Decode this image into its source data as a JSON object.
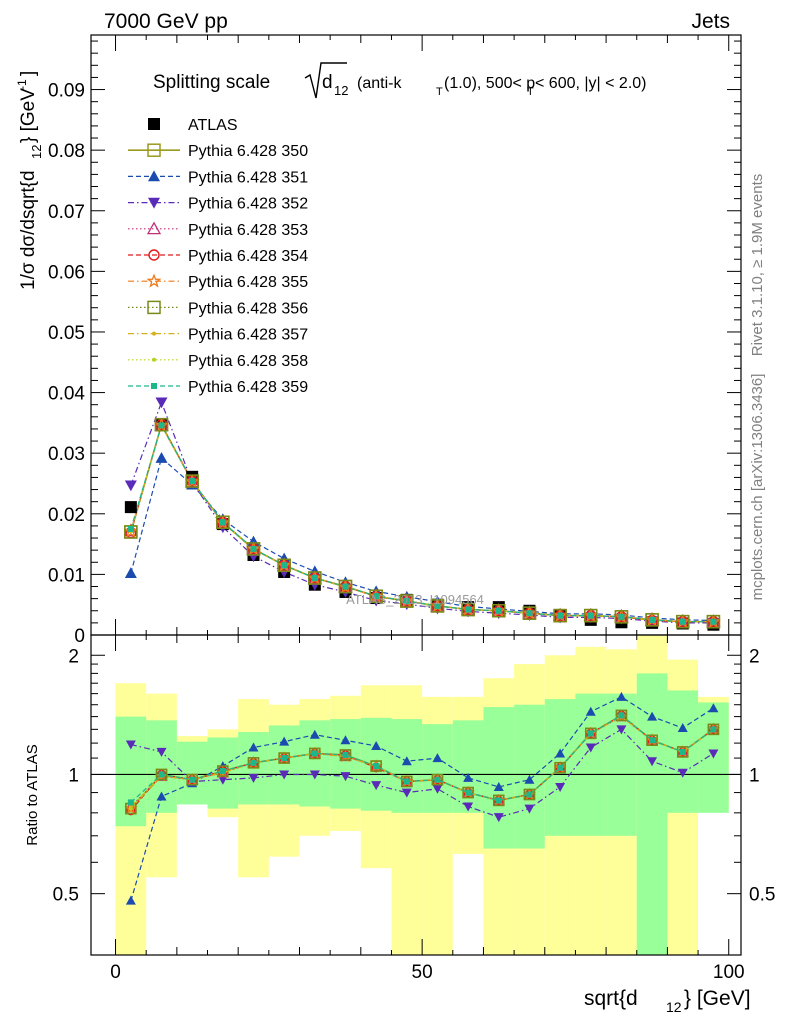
{
  "header": {
    "left": "7000 GeV pp",
    "right": "Jets"
  },
  "side_labels": {
    "rivet": "Rivet 3.1.10, ≥ 1.9M events",
    "mcplots": "mcplots.cern.ch [arXiv:1306.3436]"
  },
  "watermark": "ATLAS_2013_I1094564",
  "chart_data": [
    {
      "type": "line",
      "panel": "main",
      "title_parts": [
        "Splitting scale ",
        "d",
        "12",
        " (anti-k",
        "T",
        "(1.0), 500< p",
        "T",
        " < 600, |y| < 2.0)"
      ],
      "xlabel": "sqrt{d",
      "xlabel_sub": "12",
      "xlabel_end": "} [GeV]",
      "ylabel": "1/σ dσ/dsqrt{d",
      "ylabel_sub": "12",
      "ylabel_mid": "} [GeV",
      "ylabel_sup": "-1",
      "ylabel_end": "]",
      "xlim": [
        -4,
        102
      ],
      "ylim": [
        0,
        0.099
      ],
      "yticks": [
        "0",
        "0.01",
        "0.02",
        "0.03",
        "0.04",
        "0.05",
        "0.06",
        "0.07",
        "0.08",
        "0.09"
      ],
      "xticks": [
        "0",
        "50",
        "100"
      ],
      "x": [
        2.5,
        7.5,
        12.5,
        17.5,
        22.5,
        27.5,
        32.5,
        37.5,
        42.5,
        47.5,
        52.5,
        57.5,
        62.5,
        67.5,
        72.5,
        77.5,
        82.5,
        87.5,
        92.5,
        97.5
      ],
      "series": [
        {
          "name": "ATLAS",
          "color": "#000000",
          "marker": "square-filled",
          "style": "points",
          "values": [
            0.0211,
            0.0347,
            0.0261,
            0.0183,
            0.0132,
            0.0104,
            0.0083,
            0.0071,
            0.0061,
            0.0058,
            0.005,
            0.0046,
            0.0046,
            0.004,
            0.0031,
            0.0025,
            0.0021,
            0.002,
            0.0019,
            0.0017
          ]
        },
        {
          "name": "Pythia 6.428 350",
          "color": "#9a9a1e",
          "marker": "square-open",
          "style": "solid",
          "values": [
            0.017,
            0.0347,
            0.0253,
            0.0186,
            0.0142,
            0.0115,
            0.0094,
            0.008,
            0.0064,
            0.0056,
            0.0048,
            0.0042,
            0.004,
            0.0036,
            0.0032,
            0.0032,
            0.003,
            0.0025,
            0.0022,
            0.0022
          ]
        },
        {
          "name": "Pythia 6.428 351",
          "color": "#1c4bb0",
          "marker": "triangle-up-filled",
          "style": "dash",
          "values": [
            0.0102,
            0.0292,
            0.0248,
            0.0191,
            0.0154,
            0.0126,
            0.0105,
            0.0087,
            0.0072,
            0.0063,
            0.0055,
            0.0047,
            0.0043,
            0.0039,
            0.0035,
            0.0035,
            0.0033,
            0.0028,
            0.0025,
            0.0024
          ]
        },
        {
          "name": "Pythia 6.428 352",
          "color": "#5a2ab8",
          "marker": "triangle-down-filled",
          "style": "dashdot",
          "values": [
            0.0247,
            0.0384,
            0.0252,
            0.0178,
            0.013,
            0.0104,
            0.0083,
            0.0071,
            0.0057,
            0.0051,
            0.0044,
            0.0039,
            0.0036,
            0.0033,
            0.0029,
            0.0029,
            0.0027,
            0.0023,
            0.002,
            0.002
          ]
        },
        {
          "name": "Pythia 6.428 353",
          "color": "#c0307a",
          "marker": "triangle-up-open",
          "style": "dot",
          "values": [
            0.0172,
            0.0346,
            0.0253,
            0.0185,
            0.0141,
            0.0115,
            0.0094,
            0.0079,
            0.0064,
            0.0056,
            0.0048,
            0.0042,
            0.004,
            0.0036,
            0.0032,
            0.0032,
            0.003,
            0.0024,
            0.0022,
            0.0022
          ]
        },
        {
          "name": "Pythia 6.428 354",
          "color": "#e01a1a",
          "marker": "circle-open",
          "style": "dash",
          "values": [
            0.0169,
            0.0347,
            0.0254,
            0.0186,
            0.0142,
            0.0115,
            0.0094,
            0.008,
            0.0063,
            0.0056,
            0.0048,
            0.0042,
            0.004,
            0.0036,
            0.0032,
            0.0032,
            0.003,
            0.0024,
            0.0022,
            0.0022
          ]
        },
        {
          "name": "Pythia 6.428 355",
          "color": "#f07a1a",
          "marker": "star-open",
          "style": "dashdot",
          "values": [
            0.0171,
            0.0346,
            0.0253,
            0.0185,
            0.0142,
            0.0115,
            0.0094,
            0.0079,
            0.0064,
            0.0056,
            0.0048,
            0.0042,
            0.004,
            0.0036,
            0.0032,
            0.0032,
            0.003,
            0.0025,
            0.0022,
            0.0022
          ]
        },
        {
          "name": "Pythia 6.428 356",
          "color": "#7a8a1a",
          "marker": "square-open",
          "style": "dot",
          "values": [
            0.017,
            0.0347,
            0.0254,
            0.0186,
            0.0142,
            0.0115,
            0.0094,
            0.008,
            0.0064,
            0.0056,
            0.0048,
            0.0042,
            0.004,
            0.0036,
            0.0032,
            0.0032,
            0.003,
            0.0025,
            0.0022,
            0.0022
          ]
        },
        {
          "name": "Pythia 6.428 357",
          "color": "#d6b01a",
          "marker": "small-dot",
          "style": "dashdot",
          "values": [
            0.0173,
            0.0345,
            0.0253,
            0.0185,
            0.0141,
            0.0115,
            0.0094,
            0.0079,
            0.0064,
            0.0056,
            0.0048,
            0.0042,
            0.004,
            0.0036,
            0.0032,
            0.0032,
            0.003,
            0.0024,
            0.0022,
            0.0022
          ]
        },
        {
          "name": "Pythia 6.428 358",
          "color": "#b8d21a",
          "marker": "small-dot",
          "style": "dot",
          "values": [
            0.0171,
            0.0346,
            0.0253,
            0.0186,
            0.0142,
            0.0115,
            0.0094,
            0.008,
            0.0064,
            0.0056,
            0.0048,
            0.0042,
            0.004,
            0.0036,
            0.0032,
            0.0032,
            0.003,
            0.0025,
            0.0022,
            0.0022
          ]
        },
        {
          "name": "Pythia 6.428 359",
          "color": "#1ab88a",
          "marker": "square-small",
          "style": "dash",
          "values": [
            0.0175,
            0.0346,
            0.0254,
            0.0186,
            0.0142,
            0.0115,
            0.0094,
            0.008,
            0.0064,
            0.0056,
            0.0048,
            0.0042,
            0.004,
            0.0036,
            0.0032,
            0.0032,
            0.003,
            0.0025,
            0.0022,
            0.0022
          ]
        }
      ]
    },
    {
      "type": "line",
      "panel": "ratio",
      "ylabel": "Ratio to ATLAS",
      "xlim": [
        -4,
        102
      ],
      "ylim": [
        0.35,
        2.25
      ],
      "yticks": [
        "0.5",
        "1",
        "2"
      ],
      "reference_line": 1,
      "bands": {
        "x_low": [
          0,
          5,
          10,
          15,
          20,
          25,
          30,
          35,
          40,
          45,
          50,
          55,
          60,
          65,
          70,
          75,
          80,
          85,
          90,
          95
        ],
        "x_high": [
          5,
          10,
          15,
          20,
          25,
          30,
          35,
          40,
          45,
          50,
          55,
          60,
          65,
          70,
          75,
          80,
          85,
          90,
          95,
          100
        ],
        "green_low": [
          0.74,
          0.8,
          0.84,
          0.82,
          0.84,
          0.84,
          0.83,
          0.82,
          0.81,
          0.8,
          0.8,
          0.8,
          0.65,
          0.65,
          0.7,
          0.7,
          0.7,
          0.35,
          0.8,
          0.8
        ],
        "green_high": [
          1.4,
          1.37,
          1.21,
          1.24,
          1.28,
          1.33,
          1.37,
          1.38,
          1.39,
          1.38,
          1.34,
          1.37,
          1.48,
          1.5,
          1.55,
          1.6,
          1.6,
          1.8,
          1.63,
          1.52
        ],
        "yellow_low": [
          0.35,
          0.55,
          0.85,
          0.78,
          0.55,
          0.62,
          0.7,
          0.72,
          0.58,
          0.35,
          0.35,
          0.63,
          0.35,
          0.35,
          0.35,
          0.35,
          0.35,
          0.35,
          0.35,
          0.83
        ],
        "yellow_high": [
          1.7,
          1.6,
          1.25,
          1.3,
          1.55,
          1.5,
          1.55,
          1.58,
          1.68,
          1.68,
          1.57,
          1.57,
          1.75,
          1.9,
          2.0,
          2.1,
          2.07,
          2.25,
          1.95,
          1.57
        ]
      },
      "series": [
        {
          "name": "Pythia 6.428 350",
          "values": [
            0.82,
            1.0,
            0.97,
            1.02,
            1.07,
            1.1,
            1.13,
            1.12,
            1.05,
            0.96,
            0.97,
            0.9,
            0.86,
            0.89,
            1.04,
            1.27,
            1.41,
            1.22,
            1.14,
            1.3
          ]
        },
        {
          "name": "Pythia 6.428 351",
          "values": [
            0.48,
            0.88,
            0.95,
            1.05,
            1.17,
            1.21,
            1.26,
            1.22,
            1.18,
            1.08,
            1.1,
            0.98,
            0.93,
            0.97,
            1.13,
            1.44,
            1.57,
            1.4,
            1.31,
            1.47
          ]
        },
        {
          "name": "Pythia 6.428 352",
          "values": [
            1.19,
            1.14,
            0.96,
            0.97,
            0.98,
            1.0,
            1.0,
            0.99,
            0.94,
            0.9,
            0.92,
            0.83,
            0.78,
            0.82,
            0.93,
            1.17,
            1.3,
            1.08,
            1.01,
            1.13
          ]
        },
        {
          "name": "Pythia 6.428 353",
          "values": [
            0.83,
            0.99,
            0.97,
            1.01,
            1.07,
            1.1,
            1.13,
            1.11,
            1.05,
            0.96,
            0.97,
            0.9,
            0.86,
            0.89,
            1.04,
            1.27,
            1.4,
            1.22,
            1.14,
            1.3
          ]
        },
        {
          "name": "Pythia 6.428 354",
          "values": [
            0.81,
            1.0,
            0.97,
            1.02,
            1.07,
            1.1,
            1.13,
            1.12,
            1.04,
            0.96,
            0.97,
            0.9,
            0.86,
            0.89,
            1.04,
            1.27,
            1.41,
            1.22,
            1.14,
            1.3
          ]
        },
        {
          "name": "Pythia 6.428 355",
          "values": [
            0.82,
            0.99,
            0.97,
            1.01,
            1.07,
            1.1,
            1.13,
            1.11,
            1.05,
            0.96,
            0.97,
            0.9,
            0.86,
            0.89,
            1.04,
            1.27,
            1.4,
            1.22,
            1.14,
            1.3
          ]
        },
        {
          "name": "Pythia 6.428 356",
          "values": [
            0.82,
            1.0,
            0.97,
            1.02,
            1.07,
            1.1,
            1.13,
            1.12,
            1.05,
            0.96,
            0.97,
            0.9,
            0.86,
            0.89,
            1.04,
            1.27,
            1.41,
            1.22,
            1.14,
            1.3
          ]
        },
        {
          "name": "Pythia 6.428 357",
          "values": [
            0.83,
            0.99,
            0.97,
            1.01,
            1.07,
            1.1,
            1.13,
            1.11,
            1.05,
            0.96,
            0.97,
            0.9,
            0.86,
            0.89,
            1.04,
            1.27,
            1.4,
            1.22,
            1.14,
            1.3
          ]
        },
        {
          "name": "Pythia 6.428 358",
          "values": [
            0.82,
            1.0,
            0.97,
            1.02,
            1.07,
            1.1,
            1.13,
            1.12,
            1.05,
            0.96,
            0.97,
            0.9,
            0.86,
            0.89,
            1.04,
            1.27,
            1.41,
            1.22,
            1.14,
            1.3
          ]
        },
        {
          "name": "Pythia 6.428 359",
          "values": [
            0.85,
            1.0,
            0.97,
            1.02,
            1.07,
            1.1,
            1.13,
            1.12,
            1.05,
            0.96,
            0.97,
            0.9,
            0.86,
            0.89,
            1.04,
            1.27,
            1.41,
            1.22,
            1.14,
            1.3
          ]
        }
      ]
    }
  ]
}
